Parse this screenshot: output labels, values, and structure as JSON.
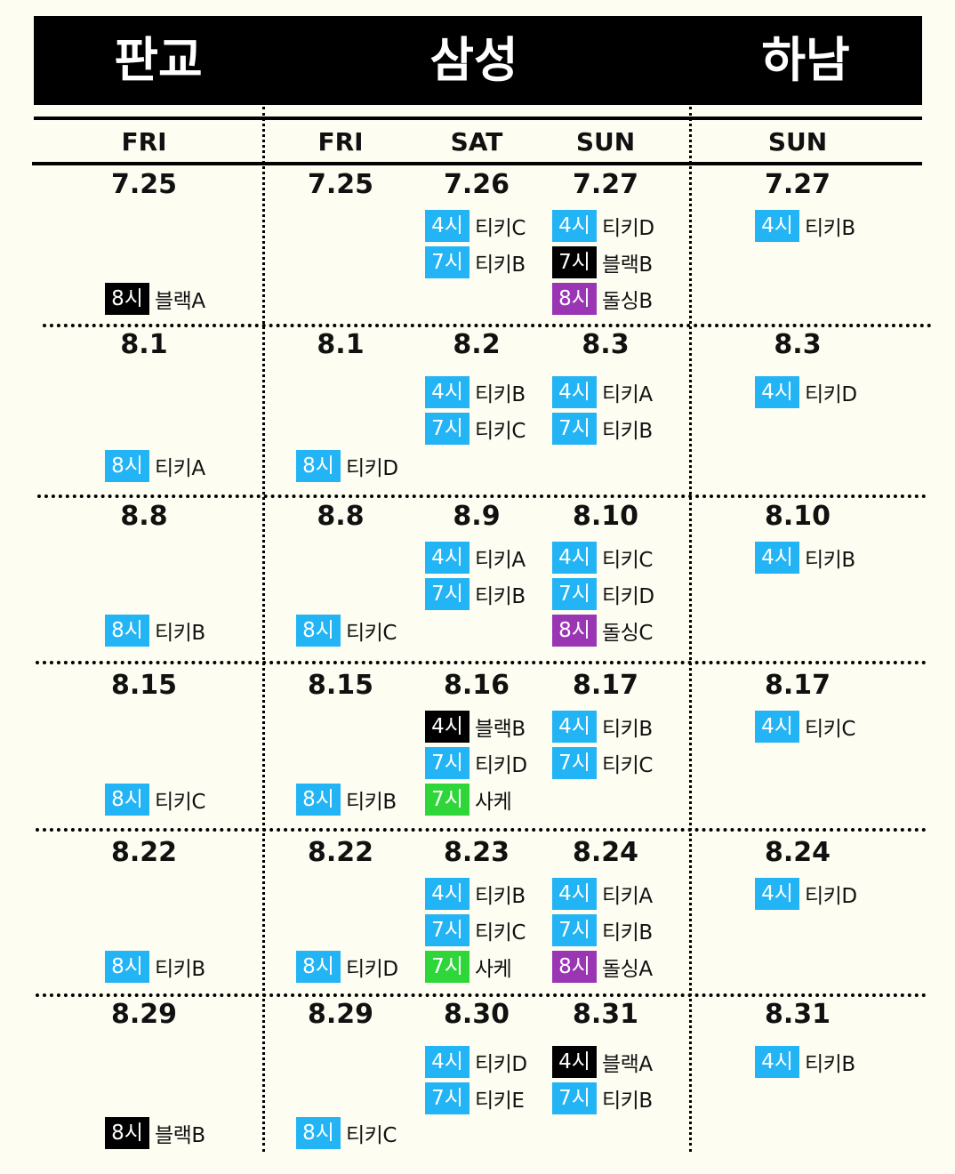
{
  "venues": [
    "판교",
    "삼성",
    "하남"
  ],
  "columns": [
    {
      "venue": "판교",
      "day": "FRI"
    },
    {
      "venue": "삼성",
      "day": "FRI"
    },
    {
      "venue": "삼성",
      "day": "SAT"
    },
    {
      "venue": "삼성",
      "day": "SUN"
    },
    {
      "venue": "하남",
      "day": "SUN"
    }
  ],
  "colors": {
    "4시": "#22b4f4",
    "7시": "#22b4f4",
    "8시": "#22b4f4",
    "black": "#000000",
    "green": "#2fd63a",
    "purple": "#9a36b4"
  },
  "weeks": [
    {
      "dates": [
        "7.25",
        "7.25",
        "7.26",
        "7.27",
        "7.27"
      ],
      "events": [
        [
          {
            "time": "8시",
            "team": "블랙A",
            "color": "black"
          }
        ],
        [],
        [
          {
            "time": "4시",
            "team": "티키C",
            "color": "blue"
          },
          {
            "time": "7시",
            "team": "티키B",
            "color": "blue"
          }
        ],
        [
          {
            "time": "4시",
            "team": "티키D",
            "color": "blue"
          },
          {
            "time": "7시",
            "team": "블랙B",
            "color": "black"
          },
          {
            "time": "8시",
            "team": "돌싱B",
            "color": "purple"
          }
        ],
        [
          {
            "time": "4시",
            "team": "티키B",
            "color": "blue"
          }
        ]
      ]
    },
    {
      "dates": [
        "8.1",
        "8.1",
        "8.2",
        "8.3",
        "8.3"
      ],
      "events": [
        [
          {
            "time": "8시",
            "team": "티키A",
            "color": "blue"
          }
        ],
        [
          {
            "time": "8시",
            "team": "티키D",
            "color": "blue"
          }
        ],
        [
          {
            "time": "4시",
            "team": "티키B",
            "color": "blue"
          },
          {
            "time": "7시",
            "team": "티키C",
            "color": "blue"
          }
        ],
        [
          {
            "time": "4시",
            "team": "티키A",
            "color": "blue"
          },
          {
            "time": "7시",
            "team": "티키B",
            "color": "blue"
          }
        ],
        [
          {
            "time": "4시",
            "team": "티키D",
            "color": "blue"
          }
        ]
      ]
    },
    {
      "dates": [
        "8.8",
        "8.8",
        "8.9",
        "8.10",
        "8.10"
      ],
      "events": [
        [
          {
            "time": "8시",
            "team": "티키B",
            "color": "blue"
          }
        ],
        [
          {
            "time": "8시",
            "team": "티키C",
            "color": "blue"
          }
        ],
        [
          {
            "time": "4시",
            "team": "티키A",
            "color": "blue"
          },
          {
            "time": "7시",
            "team": "티키B",
            "color": "blue"
          }
        ],
        [
          {
            "time": "4시",
            "team": "티키C",
            "color": "blue"
          },
          {
            "time": "7시",
            "team": "티키D",
            "color": "blue"
          },
          {
            "time": "8시",
            "team": "돌싱C",
            "color": "purple"
          }
        ],
        [
          {
            "time": "4시",
            "team": "티키B",
            "color": "blue"
          }
        ]
      ]
    },
    {
      "dates": [
        "8.15",
        "8.15",
        "8.16",
        "8.17",
        "8.17"
      ],
      "events": [
        [
          {
            "time": "8시",
            "team": "티키C",
            "color": "blue"
          }
        ],
        [
          {
            "time": "8시",
            "team": "티키B",
            "color": "blue"
          }
        ],
        [
          {
            "time": "4시",
            "team": "블랙B",
            "color": "black"
          },
          {
            "time": "7시",
            "team": "티키D",
            "color": "blue"
          },
          {
            "time": "7시",
            "team": "사케",
            "color": "green"
          }
        ],
        [
          {
            "time": "4시",
            "team": "티키B",
            "color": "blue"
          },
          {
            "time": "7시",
            "team": "티키C",
            "color": "blue"
          }
        ],
        [
          {
            "time": "4시",
            "team": "티키C",
            "color": "blue"
          }
        ]
      ]
    },
    {
      "dates": [
        "8.22",
        "8.22",
        "8.23",
        "8.24",
        "8.24"
      ],
      "events": [
        [
          {
            "time": "8시",
            "team": "티키B",
            "color": "blue"
          }
        ],
        [
          {
            "time": "8시",
            "team": "티키D",
            "color": "blue"
          }
        ],
        [
          {
            "time": "4시",
            "team": "티키B",
            "color": "blue"
          },
          {
            "time": "7시",
            "team": "티키C",
            "color": "blue"
          },
          {
            "time": "7시",
            "team": "사케",
            "color": "green"
          }
        ],
        [
          {
            "time": "4시",
            "team": "티키A",
            "color": "blue"
          },
          {
            "time": "7시",
            "team": "티키B",
            "color": "blue"
          },
          {
            "time": "8시",
            "team": "돌싱A",
            "color": "purple"
          }
        ],
        [
          {
            "time": "4시",
            "team": "티키D",
            "color": "blue"
          }
        ]
      ]
    },
    {
      "dates": [
        "8.29",
        "8.29",
        "8.30",
        "8.31",
        "8.31"
      ],
      "events": [
        [
          {
            "time": "8시",
            "team": "블랙B",
            "color": "black"
          }
        ],
        [
          {
            "time": "8시",
            "team": "티키C",
            "color": "blue"
          }
        ],
        [
          {
            "time": "4시",
            "team": "티키D",
            "color": "blue"
          },
          {
            "time": "7시",
            "team": "티키E",
            "color": "blue"
          }
        ],
        [
          {
            "time": "4시",
            "team": "블랙A",
            "color": "black"
          },
          {
            "time": "7시",
            "team": "티키B",
            "color": "blue"
          }
        ],
        [
          {
            "time": "4시",
            "team": "티키B",
            "color": "blue"
          }
        ]
      ]
    }
  ],
  "palette": {
    "blue": "#22b4f4",
    "black": "#000000",
    "green": "#2fd63a",
    "purple": "#9a36b4"
  }
}
